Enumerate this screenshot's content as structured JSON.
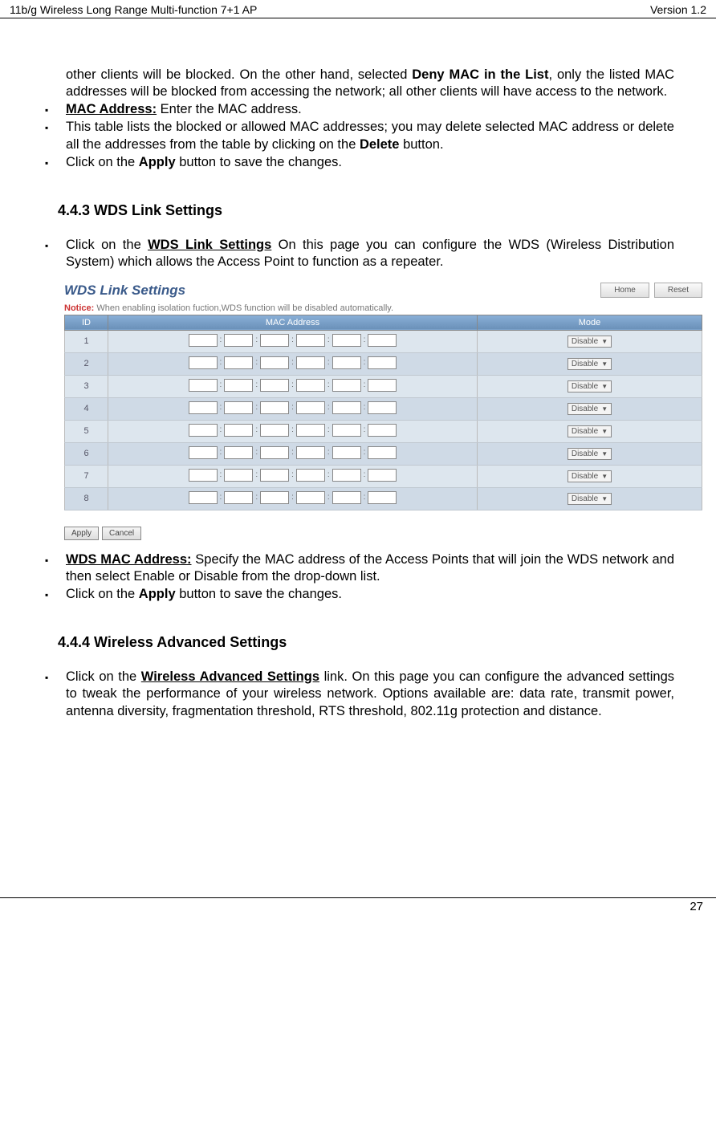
{
  "header": {
    "left": "11b/g Wireless Long Range Multi-function 7+1 AP",
    "right": "Version 1.2"
  },
  "intro_para": {
    "text_prefix": "other clients will be blocked. On the other hand, selected ",
    "bold1": "Deny MAC in the List",
    "text_suffix": ", only the listed MAC addresses will be blocked from accessing the network; all other clients will have access to the network."
  },
  "bullets1": {
    "mac_label": "MAC Address:",
    "mac_text": " Enter the MAC address.",
    "table_text_pre": "This table lists the blocked or allowed MAC addresses; you may delete selected MAC address or delete all the addresses from the table by clicking on the ",
    "delete_bold": "Delete",
    "table_text_post": " button.",
    "apply_pre": "Click on the ",
    "apply_bold": "Apply",
    "apply_post": " button to save the changes."
  },
  "section443": {
    "heading": "4.4.3   WDS Link Settings",
    "bullet_pre": "Click on the ",
    "bullet_bold": "WDS Link Settings",
    "bullet_post": "  On this page you can configure the WDS (Wireless Distribution System) which allows the Access Point to function as a repeater."
  },
  "screenshot": {
    "title": "WDS Link Settings",
    "home_btn": "Home",
    "reset_btn": "Reset",
    "notice_label": "Notice:",
    "notice_text": " When enabling isolation fuction,WDS function will be disabled automatically.",
    "th_id": "ID",
    "th_mac": "MAC Address",
    "th_mode": "Mode",
    "rows": [
      "1",
      "2",
      "3",
      "4",
      "5",
      "6",
      "7",
      "8"
    ],
    "mode_value": "Disable",
    "apply": "Apply",
    "cancel": "Cancel"
  },
  "bullets2": {
    "wds_label": "WDS MAC Address:",
    "wds_text": " Specify the MAC address of the Access Points that will join the WDS network and then select Enable or Disable from the drop-down list.",
    "apply_pre": "Click on the ",
    "apply_bold": "Apply",
    "apply_post": " button to save the changes."
  },
  "section444": {
    "heading": "4.4.4   Wireless Advanced Settings",
    "bullet_pre": "Click on the ",
    "bullet_bold": "Wireless Advanced Settings",
    "bullet_post": " link. On this page you can configure the advanced settings to tweak the performance of your wireless network. Options available are: data rate, transmit power, antenna diversity, fragmentation threshold, RTS threshold, 802.11g protection and distance."
  },
  "footer": {
    "page": "27"
  }
}
